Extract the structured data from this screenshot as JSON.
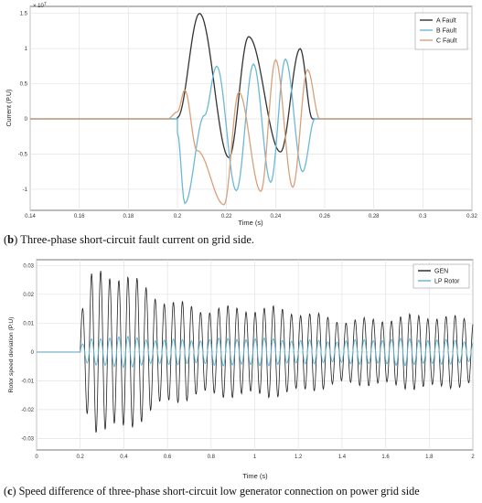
{
  "captions": [
    {
      "tag": "b",
      "text": "Three-phase short-circuit fault current on grid side."
    },
    {
      "tag": "c",
      "text": "Speed difference of three-phase short-circuit low generator connection on power grid side"
    }
  ],
  "chart_data": [
    {
      "type": "line",
      "title": "",
      "xlabel": "Time  (s)",
      "ylabel": "Current  (P.U)",
      "exponent_label": "× 10^7",
      "xlim": [
        0.14,
        0.32
      ],
      "ylim": [
        -1.3,
        1.6
      ],
      "x_ticks": [
        0.14,
        0.16,
        0.18,
        0.2,
        0.22,
        0.24,
        0.26,
        0.28,
        0.3,
        0.32
      ],
      "x_tick_labels": [
        "0.14",
        "0.16",
        "0.18",
        "0.2",
        "0.22",
        "0.24",
        "0.26",
        "0.28",
        "0.3",
        "0.32"
      ],
      "y_ticks": [
        -1,
        -0.5,
        0,
        0.5,
        1,
        1.5
      ],
      "y_tick_labels": [
        "-1",
        "-0.5",
        "0",
        "0.5",
        "1",
        "1.5"
      ],
      "grid": true,
      "legend_position": "top-right",
      "series": [
        {
          "name": "A  Fault",
          "color": "#333333",
          "x": [
            0.14,
            0.2,
            0.2,
            0.209,
            0.221,
            0.229,
            0.242,
            0.25,
            0.255,
            0.257,
            0.32
          ],
          "y": [
            0,
            0,
            0.02,
            1.5,
            -0.55,
            1.17,
            -0.47,
            1.0,
            0,
            0,
            0
          ]
        },
        {
          "name": "B  Fault",
          "color": "#6cb8d8",
          "x": [
            0.14,
            0.2,
            0.2,
            0.203,
            0.211,
            0.216,
            0.224,
            0.231,
            0.238,
            0.244,
            0.251,
            0.256,
            0.32
          ],
          "y": [
            0,
            0,
            -0.2,
            -1.2,
            0.05,
            0.75,
            -1.02,
            0.78,
            -0.9,
            0.85,
            -0.75,
            0,
            0
          ]
        },
        {
          "name": "C  Fault",
          "color": "#d9a07a",
          "x": [
            0.14,
            0.196,
            0.2,
            0.203,
            0.208,
            0.219,
            0.225,
            0.234,
            0.24,
            0.247,
            0.253,
            0.258,
            0.32
          ],
          "y": [
            0,
            0,
            0.1,
            0.41,
            -0.45,
            -1.22,
            0.38,
            -1.03,
            0.84,
            -0.97,
            0.7,
            0,
            0
          ]
        }
      ]
    },
    {
      "type": "line",
      "title": "",
      "xlabel": "Time  (s)",
      "ylabel": "Rotor speed deviation  (P.U)",
      "xlim": [
        0,
        2
      ],
      "ylim": [
        -0.034,
        0.032
      ],
      "x_ticks": [
        0,
        0.2,
        0.4,
        0.6,
        0.8,
        1,
        1.2,
        1.4,
        1.6,
        1.8,
        2
      ],
      "x_tick_labels": [
        "0",
        "0.2",
        "0.4",
        "0.6",
        "0.8",
        "1",
        "1.2",
        "1.4",
        "1.6",
        "1.8",
        "2"
      ],
      "y_ticks": [
        -0.03,
        -0.02,
        -0.01,
        0,
        0.01,
        0.02,
        0.03
      ],
      "y_tick_labels": [
        "-0.03",
        "-0.02",
        "-0.01",
        "0",
        "0.01",
        "0.02",
        "0.03"
      ],
      "grid": true,
      "legend_position": "top-right",
      "series": [
        {
          "name": "GEN",
          "color": "#222222",
          "fault_start": 0.2,
          "frequency_hz": 24.0,
          "envelope_t": [
            0.2,
            0.25,
            0.3,
            0.4,
            0.6,
            0.8,
            1.0,
            1.4,
            2.0
          ],
          "envelope_a": [
            0.012,
            0.024,
            0.026,
            0.024,
            0.018,
            0.016,
            0.014,
            0.012,
            0.011
          ]
        },
        {
          "name": "LP Rotor",
          "color": "#5fb4d6",
          "fault_start": 0.2,
          "frequency_hz": 24.0,
          "envelope_t": [
            0.2,
            0.25,
            0.35,
            0.6,
            1.0,
            2.0
          ],
          "envelope_a": [
            0.002,
            0.004,
            0.005,
            0.0045,
            0.0042,
            0.004
          ]
        }
      ]
    }
  ]
}
